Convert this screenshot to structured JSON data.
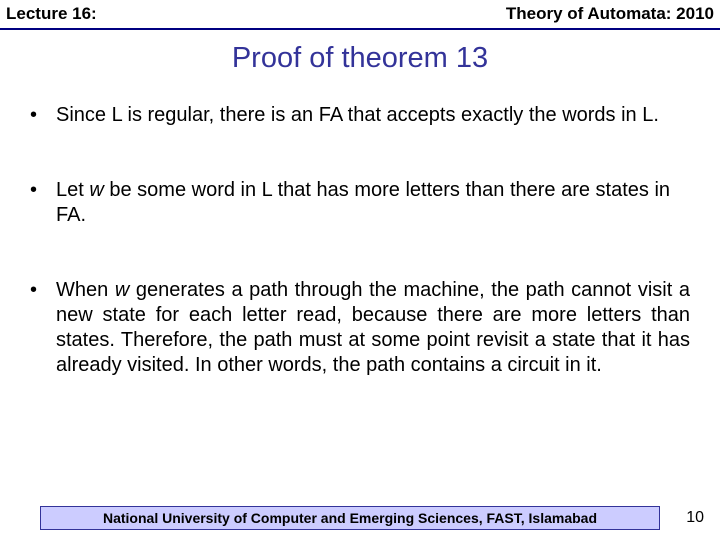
{
  "header": {
    "left": "Lecture 16:",
    "right": "Theory of Automata: 2010",
    "border_color": "#000080"
  },
  "title": {
    "text": "Proof of theorem 13",
    "color": "#333399",
    "fontsize": 29
  },
  "bullets": [
    {
      "pre": "Since L is regular, there is an FA that accepts exactly the words in L.",
      "it": "",
      "post": ""
    },
    {
      "pre": "Let ",
      "it": "w",
      "post": " be some word in L that has more letters than there are states in FA."
    },
    {
      "pre": "When ",
      "it": "w",
      "post": " generates a path through the machine, the path cannot visit a new state for each letter read, because there are more letters than states. Therefore, the path must at some point revisit a state that it has already visited. In other words, the path contains a circuit in it."
    }
  ],
  "footer": {
    "text": "National University of Computer and Emerging Sciences, FAST, Islamabad",
    "page": "10",
    "bg": "#ccccff",
    "border": "#333399"
  }
}
